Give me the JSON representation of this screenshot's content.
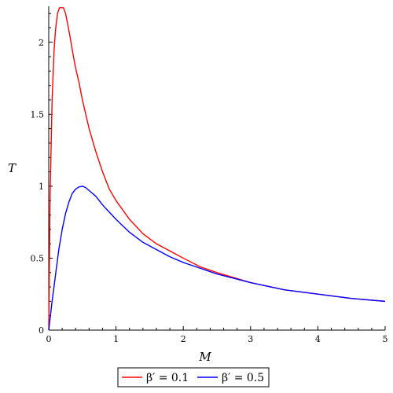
{
  "chart_data": {
    "type": "line",
    "title": "",
    "xlabel": "M",
    "ylabel": "T",
    "xlim": [
      0,
      5
    ],
    "ylim": [
      0,
      2.25
    ],
    "x_ticks": [
      "0",
      "1",
      "2",
      "3",
      "4",
      "5"
    ],
    "x_tick_values": [
      0,
      1,
      2,
      3,
      4,
      5
    ],
    "y_ticks": [
      "0",
      "0.5",
      "1",
      "1.5",
      "2"
    ],
    "y_tick_values": [
      0,
      0.5,
      1,
      1.5,
      2
    ],
    "grid": false,
    "legend_position": "bottom",
    "series": [
      {
        "name": "β′ = 0.1",
        "color": "#ff0000",
        "x": [
          0.0,
          0.02,
          0.05,
          0.08,
          0.1,
          0.13,
          0.16,
          0.2,
          0.22,
          0.25,
          0.28,
          0.32,
          0.36,
          0.4,
          0.45,
          0.5,
          0.6,
          0.7,
          0.8,
          0.9,
          1.0,
          1.2,
          1.4,
          1.6,
          1.8,
          2.0,
          2.25,
          2.5,
          3.0,
          3.5,
          4.0,
          4.5,
          5.0
        ],
        "y": [
          0.0,
          0.92,
          1.6,
          1.95,
          2.08,
          2.2,
          2.24,
          2.24,
          2.24,
          2.2,
          2.13,
          2.03,
          1.92,
          1.82,
          1.72,
          1.6,
          1.4,
          1.24,
          1.1,
          0.98,
          0.9,
          0.77,
          0.67,
          0.6,
          0.55,
          0.5,
          0.44,
          0.4,
          0.33,
          0.28,
          0.25,
          0.22,
          0.2
        ]
      },
      {
        "name": "β′ = 0.5",
        "color": "#0000ff",
        "x": [
          0.0,
          0.05,
          0.1,
          0.15,
          0.2,
          0.25,
          0.3,
          0.35,
          0.4,
          0.45,
          0.5,
          0.55,
          0.6,
          0.7,
          0.8,
          0.9,
          1.0,
          1.2,
          1.4,
          1.6,
          1.8,
          2.0,
          2.25,
          2.5,
          3.0,
          3.5,
          4.0,
          4.5,
          5.0
        ],
        "y": [
          0.0,
          0.2,
          0.38,
          0.56,
          0.7,
          0.81,
          0.89,
          0.95,
          0.98,
          0.995,
          1.0,
          0.99,
          0.97,
          0.93,
          0.87,
          0.82,
          0.77,
          0.68,
          0.61,
          0.56,
          0.51,
          0.47,
          0.43,
          0.39,
          0.33,
          0.28,
          0.25,
          0.22,
          0.2
        ]
      }
    ]
  }
}
